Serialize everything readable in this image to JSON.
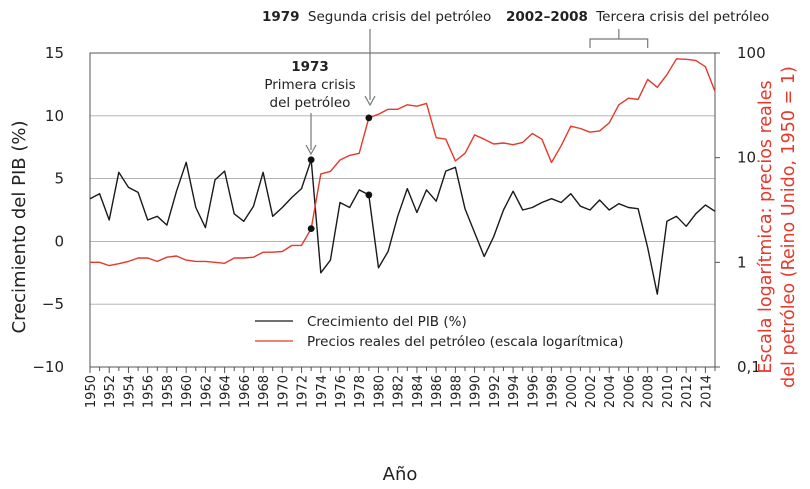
{
  "chart_data": {
    "type": "line",
    "xlabel": "Año",
    "ylabel_left": "Crecimiento del PIB (%)",
    "ylabel_right": "Escala logarítmica: precios reales del petróleo (Reino Unido, 1950 = 1)",
    "y_left_range": [
      -10,
      15
    ],
    "y_left_ticks": [
      "−10",
      "−5",
      "0",
      "5",
      "10",
      "15"
    ],
    "y_right_range": [
      0.1,
      100
    ],
    "y_right_scale": "log",
    "y_right_ticks": [
      "0,1",
      "1",
      "10",
      "100"
    ],
    "grid": "horizontal",
    "legend_position": "bottom-center",
    "x_tick_labels": [
      "1950",
      "1952",
      "1954",
      "1956",
      "1958",
      "1960",
      "1962",
      "1964",
      "1966",
      "1968",
      "1970",
      "1972",
      "1974",
      "1976",
      "1978",
      "1980",
      "1982",
      "1984",
      "1986",
      "1988",
      "1990",
      "1992",
      "1994",
      "1996",
      "1998",
      "2000",
      "2002",
      "2004",
      "2006",
      "2008",
      "2010",
      "2012",
      "2014"
    ],
    "x": [
      1950,
      1951,
      1952,
      1953,
      1954,
      1955,
      1956,
      1957,
      1958,
      1959,
      1960,
      1961,
      1962,
      1963,
      1964,
      1965,
      1966,
      1967,
      1968,
      1969,
      1970,
      1971,
      1972,
      1973,
      1974,
      1975,
      1976,
      1977,
      1978,
      1979,
      1980,
      1981,
      1982,
      1983,
      1984,
      1985,
      1986,
      1987,
      1988,
      1989,
      1990,
      1991,
      1992,
      1993,
      1994,
      1995,
      1996,
      1997,
      1998,
      1999,
      2000,
      2001,
      2002,
      2003,
      2004,
      2005,
      2006,
      2007,
      2008,
      2009,
      2010,
      2011,
      2012,
      2013,
      2014,
      2015
    ],
    "series": [
      {
        "name": "Crecimiento del PIB (%)",
        "axis": "left",
        "color": "#1a1a1a",
        "values": [
          3.4,
          3.8,
          1.7,
          5.5,
          4.3,
          3.9,
          1.7,
          2.0,
          1.3,
          4.0,
          6.3,
          2.7,
          1.1,
          4.9,
          5.6,
          2.2,
          1.6,
          2.8,
          5.5,
          2.0,
          2.7,
          3.5,
          4.2,
          6.5,
          -2.5,
          -1.5,
          3.1,
          2.7,
          4.1,
          3.7,
          -2.1,
          -0.8,
          2.0,
          4.2,
          2.3,
          4.1,
          3.2,
          5.6,
          5.9,
          2.6,
          0.7,
          -1.2,
          0.4,
          2.5,
          4.0,
          2.5,
          2.7,
          3.1,
          3.4,
          3.1,
          3.8,
          2.8,
          2.5,
          3.3,
          2.5,
          3.0,
          2.7,
          2.6,
          -0.5,
          -4.2,
          1.6,
          2.0,
          1.2,
          2.2,
          2.9,
          2.4
        ]
      },
      {
        "name": "Precios reales del petróleo (escala logarítmica)",
        "axis": "right",
        "color": "#e4392b",
        "values": [
          1.0,
          1.0,
          0.93,
          0.97,
          1.02,
          1.1,
          1.1,
          1.02,
          1.12,
          1.15,
          1.05,
          1.02,
          1.02,
          1.0,
          0.98,
          1.1,
          1.1,
          1.12,
          1.25,
          1.25,
          1.27,
          1.45,
          1.45,
          2.1,
          7.0,
          7.4,
          9.5,
          10.5,
          11.0,
          24.0,
          26.0,
          29.0,
          29.0,
          32.0,
          31.0,
          33.0,
          15.5,
          15.0,
          9.3,
          11.0,
          16.5,
          15.0,
          13.5,
          13.8,
          13.3,
          14.0,
          17.0,
          15.0,
          9.0,
          13.0,
          20.0,
          19.0,
          17.5,
          18.0,
          21.5,
          32.0,
          37.0,
          36.0,
          56.0,
          47.0,
          62.0,
          88.0,
          87.0,
          85.0,
          74.0,
          43.0
        ]
      }
    ],
    "highlight_points": [
      {
        "year": 1973,
        "series": "gdp",
        "value": 6.5
      },
      {
        "year": 1973,
        "series": "oil",
        "value": 2.1
      },
      {
        "year": 1979,
        "series": "gdp",
        "value": 3.7
      },
      {
        "year": 1979,
        "series": "oil",
        "value": 24.0
      }
    ]
  },
  "annotations": {
    "a1973": {
      "year": "1973",
      "line1": "Primera crisis",
      "line2": "del petróleo"
    },
    "a1979": {
      "year": "1979",
      "text": "Segunda crisis del petróleo"
    },
    "a2002": {
      "years": "2002–2008",
      "text": "Tercera crisis del petróleo",
      "from": 2002,
      "to": 2008
    }
  }
}
